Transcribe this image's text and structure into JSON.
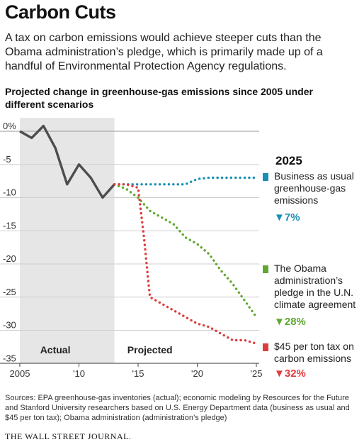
{
  "title": "Carbon Cuts",
  "intro": "A tax on carbon emissions would achieve steeper cuts than the Obama administration’s pledge, which is primarily made up of a handful of Environmental Protection Agency regulations.",
  "subtitle": "Projected change in greenhouse-gas emissions since 2005 under different scenarios",
  "legend": {
    "year": "2025",
    "items": [
      {
        "label_lines": [
          "Business as usual",
          "greenhouse-gas",
          "emissions"
        ],
        "value": "▼7%",
        "color": "#1a8fb5"
      },
      {
        "label_lines": [
          "The Obama",
          "administration’s",
          "pledge in the U.N.",
          "climate agreement"
        ],
        "value": "▼28%",
        "color": "#5fa832"
      },
      {
        "label_lines": [
          "$45 per ton tax on",
          "carbon emissions"
        ],
        "value": "▼32%",
        "color": "#e03c3c"
      }
    ]
  },
  "chart_data": {
    "type": "line",
    "ylabel": "",
    "xlabel": "",
    "xlim": [
      2005,
      2025
    ],
    "ylim": [
      -36,
      1
    ],
    "y_ticks": [
      {
        "value": 0,
        "label": "0%"
      },
      {
        "value": -5,
        "label": "-5"
      },
      {
        "value": -10,
        "label": "-10"
      },
      {
        "value": -15,
        "label": "-15"
      },
      {
        "value": -20,
        "label": "-20"
      },
      {
        "value": -25,
        "label": "-25"
      },
      {
        "value": -30,
        "label": "-30"
      },
      {
        "value": -35,
        "label": "-35"
      }
    ],
    "x_ticks": [
      {
        "value": 2005,
        "label": "2005"
      },
      {
        "value": 2010,
        "label": "'10"
      },
      {
        "value": 2015,
        "label": "'15"
      },
      {
        "value": 2020,
        "label": "'20"
      },
      {
        "value": 2025,
        "label": "'25"
      }
    ],
    "regions": [
      {
        "label": "Actual",
        "x_start": 2005,
        "x_end": 2013,
        "shaded": true
      },
      {
        "label": "Projected",
        "x_start": 2013,
        "x_end": 2025,
        "shaded": false
      }
    ],
    "grid": true,
    "series": [
      {
        "name": "Actual",
        "style": "solid",
        "color": "#4d4d4d",
        "x": [
          2005,
          2006,
          2007,
          2008,
          2009,
          2010,
          2011,
          2012,
          2013
        ],
        "y": [
          0,
          -1,
          0.8,
          -2.5,
          -8,
          -5,
          -7,
          -10,
          -8
        ]
      },
      {
        "name": "Business as usual greenhouse-gas emissions",
        "style": "dotted",
        "color": "#1a8fb5",
        "x": [
          2013,
          2014,
          2015,
          2016,
          2017,
          2018,
          2019,
          2020,
          2021,
          2022,
          2023,
          2024,
          2025
        ],
        "y": [
          -8,
          -8,
          -8,
          -8,
          -8,
          -8,
          -8,
          -7.2,
          -7,
          -7,
          -7,
          -7,
          -7
        ]
      },
      {
        "name": "The Obama administration’s pledge in the U.N. climate agreement",
        "style": "dotted",
        "color": "#5fa832",
        "x": [
          2013,
          2014,
          2015,
          2016,
          2017,
          2018,
          2019,
          2020,
          2021,
          2022,
          2023,
          2024,
          2025
        ],
        "y": [
          -8,
          -8.7,
          -10,
          -12,
          -13,
          -14,
          -16,
          -17,
          -18.5,
          -21,
          -23,
          -25.5,
          -28
        ]
      },
      {
        "name": "$45 per ton tax on carbon emissions",
        "style": "dotted",
        "color": "#e03c3c",
        "x": [
          2013,
          2014,
          2015,
          2015.5,
          2016,
          2017,
          2018,
          2019,
          2020,
          2021,
          2022,
          2023,
          2024,
          2025
        ],
        "y": [
          -8,
          -8,
          -8.5,
          -16,
          -25,
          -26,
          -27,
          -28,
          -29,
          -29.5,
          -30.5,
          -31.5,
          -31.5,
          -32
        ]
      }
    ],
    "annotations": [
      {
        "text": "Actual",
        "x": 2008,
        "y": -33.5
      },
      {
        "text": "Projected",
        "x": 2016,
        "y": -33.5
      }
    ]
  },
  "sources": "Sources: EPA greenhouse-gas inventories (actual); economic modeling by Resources for the Future and Stanford University researchers based on U.S. Energy Department data (business as usual and $45 per ton tax); Obama administration (administration’s pledge)",
  "publisher": "THE WALL STREET JOURNAL."
}
